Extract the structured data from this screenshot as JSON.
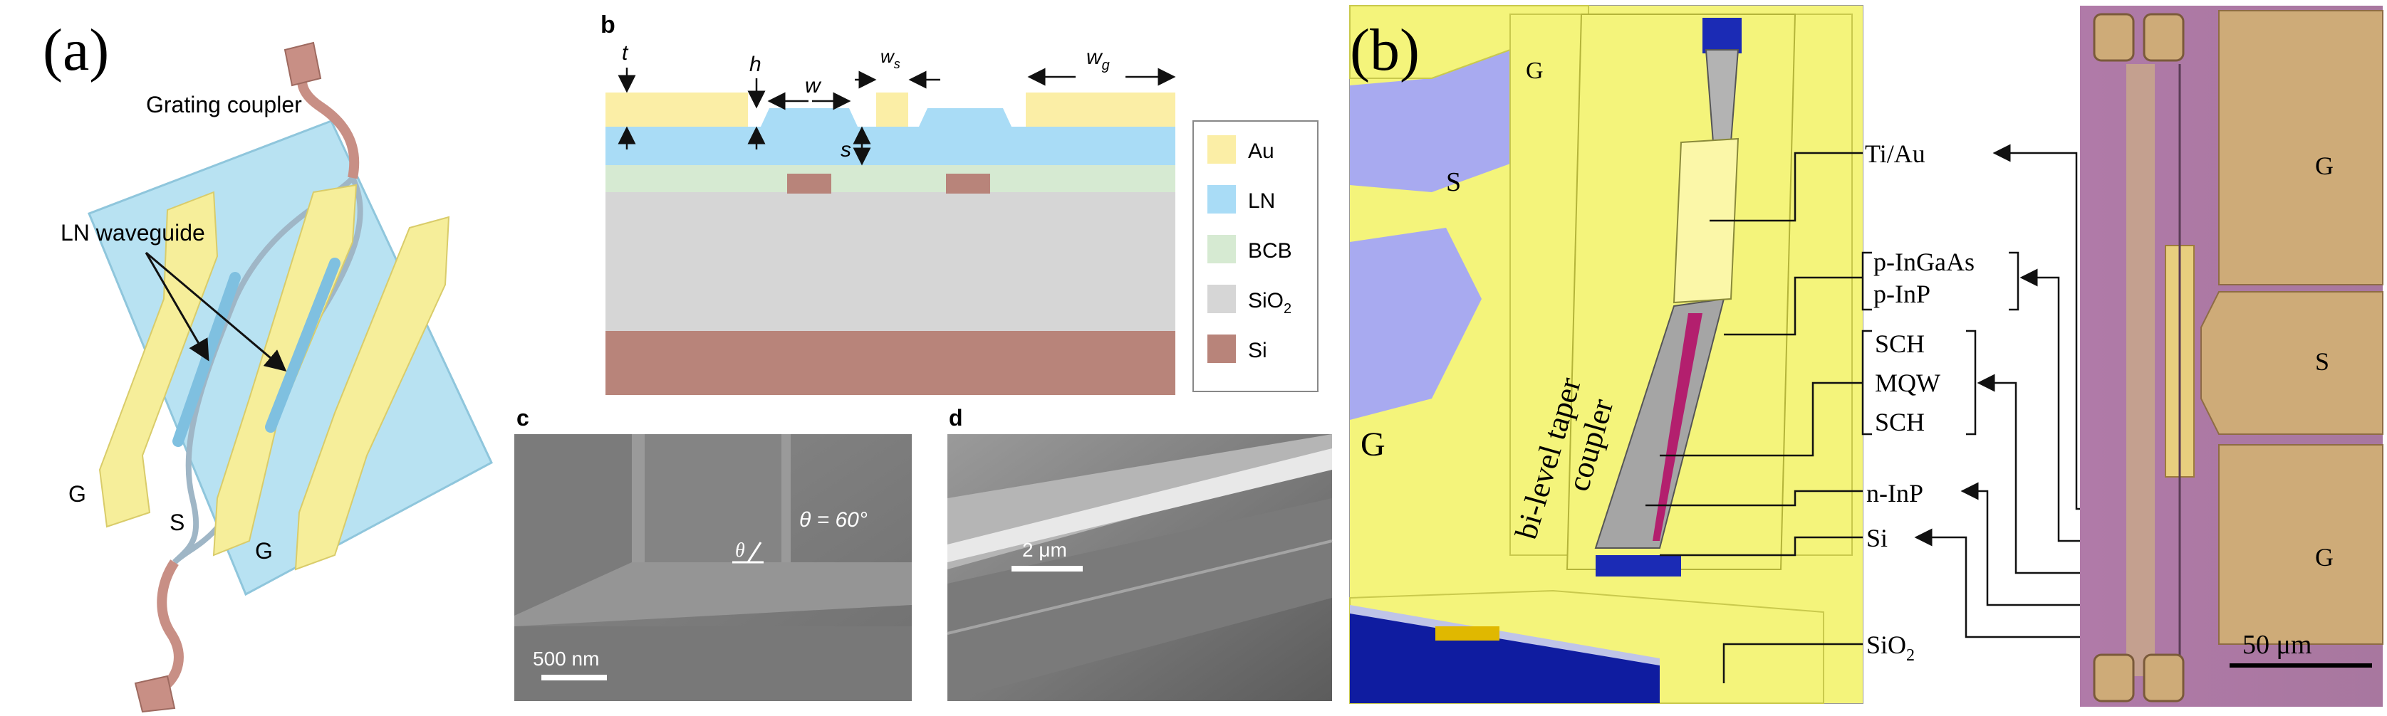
{
  "panel_a": {
    "label": "(a)",
    "grating_coupler": "Grating coupler",
    "ln_waveguide": "LN waveguide",
    "electrodes": [
      "G",
      "S",
      "G"
    ]
  },
  "panel_b_left": {
    "label_b": "b",
    "dims": {
      "t": "t",
      "h": "h",
      "w": "w",
      "ws_main": "w",
      "ws_sub": "s",
      "wg_main": "w",
      "wg_sub": "g",
      "s": "s"
    },
    "legend": [
      {
        "label": "Au",
        "color": "#fbeea6"
      },
      {
        "label": "LN",
        "color": "#a9dcf6"
      },
      {
        "label": "BCB",
        "color": "#d6ead2"
      },
      {
        "label": "SiO",
        "sub": "2",
        "color": "#d6d6d6"
      },
      {
        "label": "Si",
        "color": "#b8847a"
      }
    ],
    "label_c": "c",
    "theta_text": "θ = 60°",
    "theta_symbol": "θ",
    "scale_c": "500 nm",
    "label_d": "d",
    "scale_d": "2 μm"
  },
  "panel_b_right": {
    "label": "(b)",
    "G_top": "G",
    "S": "S",
    "G_bottom": "G",
    "coupler_text_1": "bi-level taper",
    "coupler_text_2": "coupler",
    "annotations": [
      "Ti/Au",
      "p-InGaAs",
      "p-InP",
      "SCH",
      "MQW",
      "SCH",
      "n-InP",
      "Si",
      "SiO"
    ],
    "sio2_sub": "2",
    "micro_labels": [
      "G",
      "S",
      "G"
    ],
    "scale": "50 μm"
  }
}
